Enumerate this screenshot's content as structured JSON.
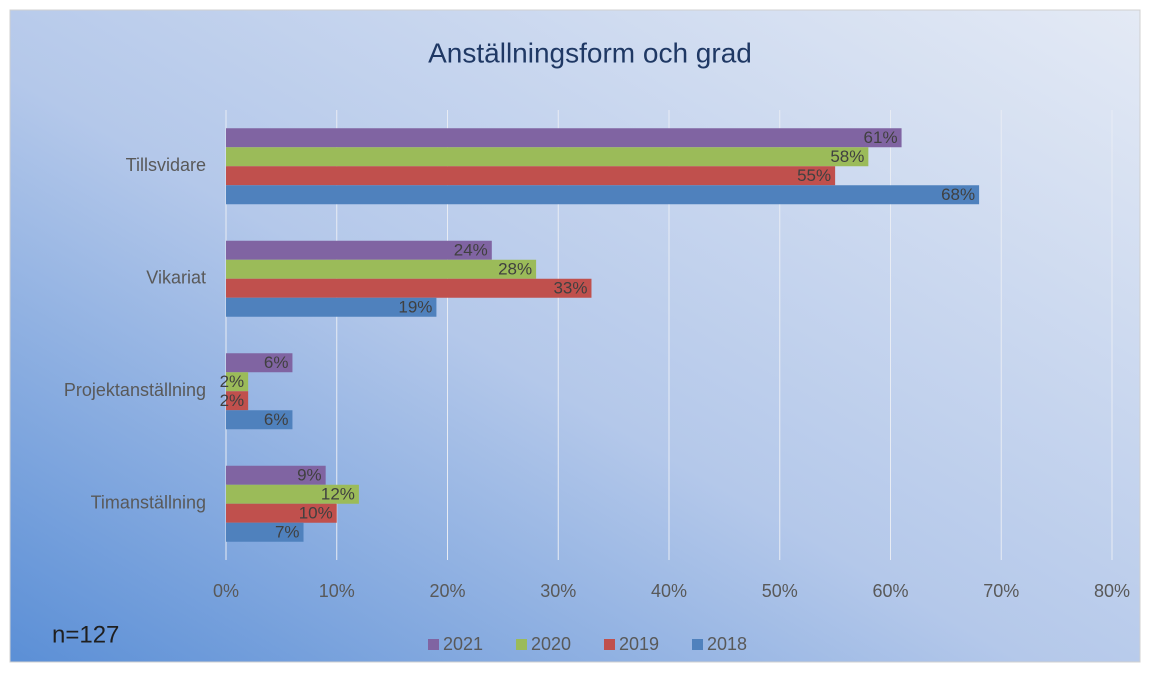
{
  "chart_data": {
    "type": "barh",
    "title": "Anställningsform och grad",
    "categories": [
      "Tillsvidare",
      "Vikariat",
      "Projektanställning",
      "Timanställning"
    ],
    "series": [
      {
        "name": "2021",
        "color": "#8064a2",
        "values": [
          61,
          24,
          6,
          9
        ],
        "value_labels": [
          "61%",
          "24%",
          "6%",
          "9%"
        ]
      },
      {
        "name": "2020",
        "color": "#9bbb59",
        "values": [
          58,
          28,
          2,
          12
        ],
        "value_labels": [
          "58%",
          "28%",
          "2%",
          "12%"
        ]
      },
      {
        "name": "2019",
        "color": "#c0504d",
        "values": [
          55,
          33,
          2,
          10
        ],
        "value_labels": [
          "55%",
          "33%",
          "2%",
          "10%"
        ]
      },
      {
        "name": "2018",
        "color": "#4f81bd",
        "values": [
          68,
          19,
          6,
          7
        ],
        "value_labels": [
          "68%",
          "19%",
          "6%",
          "7%"
        ]
      }
    ],
    "xlim": [
      0,
      80
    ],
    "xticks": [
      {
        "value": 0,
        "label": "0%"
      },
      {
        "value": 10,
        "label": "10%"
      },
      {
        "value": 20,
        "label": "20%"
      },
      {
        "value": 30,
        "label": "30%"
      },
      {
        "value": 40,
        "label": "40%"
      },
      {
        "value": 50,
        "label": "50%"
      },
      {
        "value": 60,
        "label": "60%"
      },
      {
        "value": 70,
        "label": "70%"
      },
      {
        "value": 80,
        "label": "80%"
      }
    ],
    "grid": true,
    "legend": "bottom",
    "annotation": "n=127"
  }
}
